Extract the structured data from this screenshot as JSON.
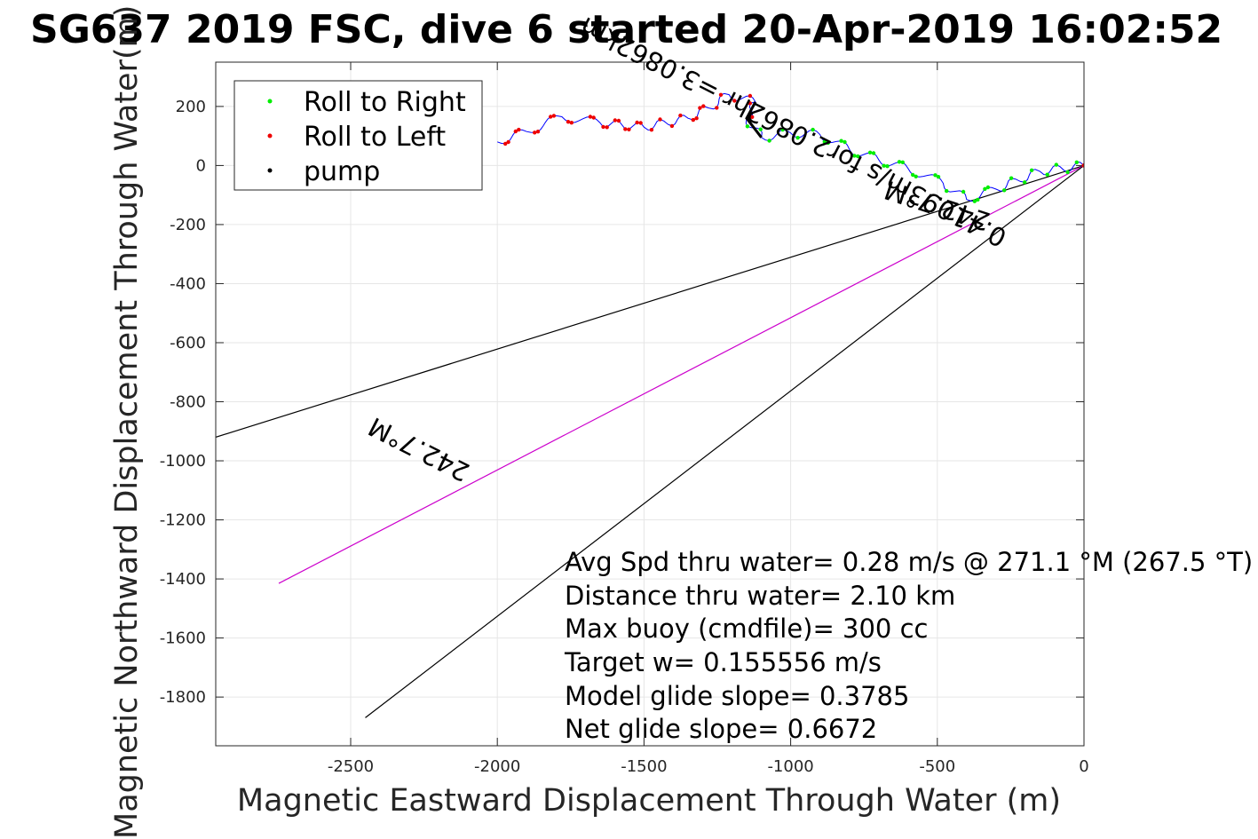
{
  "chart_data": {
    "type": "line",
    "title": "SG637 2019 FSC, dive 6 started 20-Apr-2019 16:02:52",
    "xlabel": "Magnetic Eastward Displacement Through Water (m)",
    "ylabel": "Magnetic Northward Displacement Through Water(m)",
    "xlim": [
      -2960,
      0
    ],
    "ylim": [
      -1965,
      350
    ],
    "xticks": [
      -2500,
      -2000,
      -1500,
      -1000,
      -500,
      0
    ],
    "yticks": [
      200,
      0,
      -200,
      -400,
      -600,
      -800,
      -1000,
      -1200,
      -1400,
      -1600,
      -1800
    ],
    "grid": true,
    "legend_position": "top-left",
    "legend": [
      {
        "label": "Roll to Right",
        "color": "#00ee00"
      },
      {
        "label": "Roll to Left",
        "color": "#ee0000"
      },
      {
        "label": "pump",
        "color": "#000000"
      }
    ],
    "track": [
      [
        -2000,
        80
      ],
      [
        -1900,
        115
      ],
      [
        -1780,
        165
      ],
      [
        -1650,
        145
      ],
      [
        -1500,
        130
      ],
      [
        -1350,
        160
      ],
      [
        -1280,
        195
      ],
      [
        -1210,
        240
      ],
      [
        -1120,
        215
      ],
      [
        -1150,
        160
      ],
      [
        -1100,
        95
      ],
      [
        -1000,
        110
      ],
      [
        -900,
        105
      ],
      [
        -800,
        55
      ],
      [
        -700,
        20
      ],
      [
        -600,
        -10
      ],
      [
        -480,
        -60
      ],
      [
        -400,
        -115
      ],
      [
        -300,
        -80
      ],
      [
        -150,
        -20
      ],
      [
        0,
        0
      ]
    ],
    "track_color": "#0000ff",
    "lines": [
      {
        "x": [
          0,
          -2960
        ],
        "y": [
          0,
          -920
        ],
        "color": "#000000"
      },
      {
        "x": [
          0,
          -2745
        ],
        "y": [
          0,
          -1415
        ],
        "color": "#cc00cc"
      },
      {
        "x": [
          0,
          -2450
        ],
        "y": [
          0,
          -1870
        ],
        "color": "#000000"
      }
    ],
    "bearing_labels": [
      "242.7°M",
      "0.41093m/s for2.0862hr =3.0862km",
      "242.7°M"
    ],
    "annotation_lines": [
      "Avg Spd thru water=  0.28 m/s @ 271.1 °M (267.5 °T)",
      "Distance thru water=  2.10 km",
      "Max buoy (cmdfile)= 300 cc",
      "Target w= 0.155556 m/s",
      "Model glide slope= 0.3785",
      "Net glide slope= 0.6672"
    ]
  }
}
